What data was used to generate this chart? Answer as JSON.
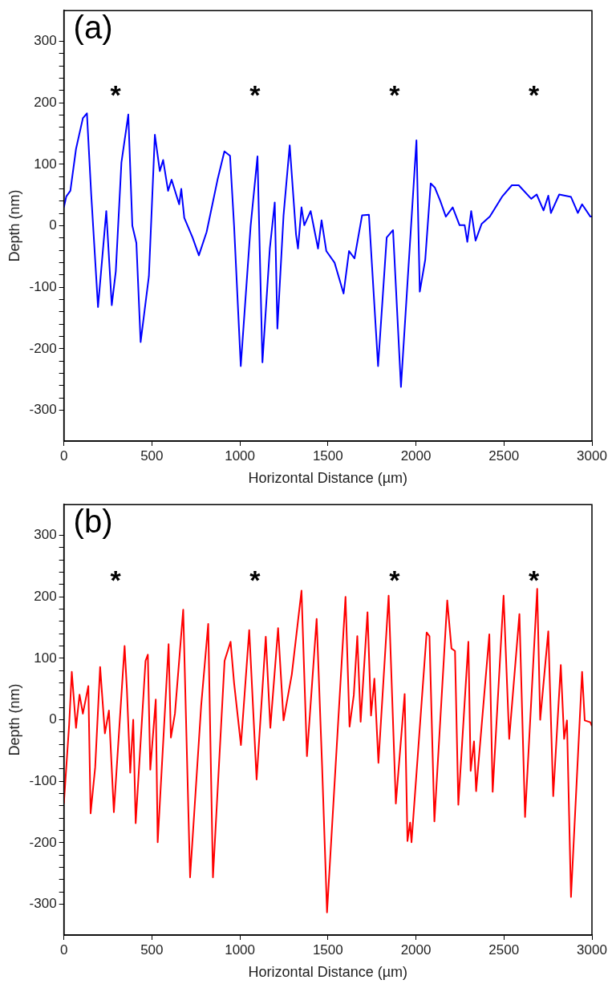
{
  "chart_data": [
    {
      "type": "line",
      "xlabel": "Horizontal Distance (µm)",
      "ylabel": "Depth (nm)",
      "annotations": [
        "(a)",
        "*",
        "*",
        "*",
        "*"
      ],
      "xlim": [
        0,
        3000
      ],
      "xticks": [
        0,
        500,
        1000,
        1500,
        2000,
        2500,
        3000
      ],
      "ylim": [
        -350,
        350
      ],
      "yticks": [
        -300,
        {
          "value": -280,
          "label": null
        },
        {
          "value": -260,
          "label": null
        },
        {
          "value": -240,
          "label": null
        },
        {
          "value": -220,
          "label": null
        },
        -200,
        {
          "value": -180,
          "label": null
        },
        {
          "value": -160,
          "label": null
        },
        {
          "value": -140,
          "label": null
        },
        {
          "value": -120,
          "label": null
        },
        -100,
        {
          "value": -80,
          "label": null
        },
        {
          "value": -60,
          "label": null
        },
        {
          "value": -40,
          "label": null
        },
        {
          "value": -20,
          "label": null
        },
        0,
        {
          "value": 20,
          "label": null
        },
        {
          "value": 40,
          "label": null
        },
        {
          "value": 60,
          "label": null
        },
        {
          "value": 80,
          "label": null
        },
        100,
        {
          "value": 120,
          "label": null
        },
        {
          "value": 140,
          "label": null
        },
        {
          "value": 160,
          "label": null
        },
        {
          "value": 180,
          "label": null
        },
        200,
        {
          "value": 220,
          "label": null
        },
        {
          "value": 240,
          "label": null
        },
        {
          "value": 260,
          "label": null
        },
        {
          "value": 280,
          "label": null
        },
        300
      ],
      "grid": false,
      "legend": false,
      "marker": "none",
      "line_style": "solid",
      "series": [
        {
          "color": "#0000ff",
          "x": [
            0,
            14,
            37,
            69,
            108,
            131,
            155,
            194,
            241,
            272,
            295,
            327,
            366,
            389,
            412,
            436,
            483,
            517,
            545,
            564,
            592,
            612,
            655,
            667,
            684,
            731,
            767,
            811,
            873,
            912,
            944,
            967,
            1005,
            1061,
            1100,
            1128,
            1170,
            1198,
            1213,
            1248,
            1283,
            1319,
            1330,
            1350,
            1366,
            1402,
            1444,
            1464,
            1491,
            1538,
            1589,
            1620,
            1651,
            1694,
            1733,
            1785,
            1834,
            1870,
            1915,
            2003,
            2022,
            2053,
            2084,
            2108,
            2139,
            2170,
            2209,
            2248,
            2277,
            2292,
            2314,
            2339,
            2373,
            2420,
            2491,
            2545,
            2584,
            2655,
            2686,
            2725,
            2752,
            2767,
            2814,
            2881,
            2920,
            2944,
            2991,
            3000
          ],
          "values": [
            30,
            48,
            57,
            125,
            175,
            183,
            53,
            -132,
            24,
            -129,
            -74,
            103,
            181,
            0,
            -28,
            -189,
            -82,
            148,
            89,
            107,
            57,
            75,
            35,
            60,
            13,
            -19,
            -48,
            -10,
            75,
            121,
            114,
            0,
            -228,
            0,
            113,
            -222,
            -37,
            38,
            -167,
            17,
            131,
            -14,
            -37,
            30,
            1,
            24,
            -37,
            9,
            -41,
            -60,
            -110,
            -41,
            -53,
            17,
            18,
            -228,
            -19,
            -7,
            -262,
            139,
            -107,
            -55,
            69,
            62,
            40,
            15,
            30,
            1,
            1,
            -26,
            24,
            -24,
            3,
            15,
            48,
            66,
            66,
            44,
            51,
            25,
            49,
            21,
            51,
            47,
            21,
            35,
            15,
            15
          ]
        }
      ]
    },
    {
      "type": "line",
      "xlabel": "Horizontal Distance (µm)",
      "ylabel": "Depth (nm)",
      "annotations": [
        "(b)",
        "*",
        "*",
        "*",
        "*"
      ],
      "xlim": [
        0,
        3000
      ],
      "xticks": [
        0,
        500,
        1000,
        1500,
        2000,
        2500,
        3000
      ],
      "ylim": [
        -350,
        350
      ],
      "yticks": [
        -300,
        {
          "value": -280,
          "label": null
        },
        {
          "value": -260,
          "label": null
        },
        {
          "value": -240,
          "label": null
        },
        {
          "value": -220,
          "label": null
        },
        -200,
        {
          "value": -180,
          "label": null
        },
        {
          "value": -160,
          "label": null
        },
        {
          "value": -140,
          "label": null
        },
        {
          "value": -120,
          "label": null
        },
        -100,
        {
          "value": -80,
          "label": null
        },
        {
          "value": -60,
          "label": null
        },
        {
          "value": -40,
          "label": null
        },
        {
          "value": -20,
          "label": null
        },
        0,
        {
          "value": 20,
          "label": null
        },
        {
          "value": 40,
          "label": null
        },
        {
          "value": 60,
          "label": null
        },
        {
          "value": 80,
          "label": null
        },
        100,
        {
          "value": 120,
          "label": null
        },
        {
          "value": 140,
          "label": null
        },
        {
          "value": 160,
          "label": null
        },
        {
          "value": 180,
          "label": null
        },
        200,
        {
          "value": 220,
          "label": null
        },
        {
          "value": 240,
          "label": null
        },
        {
          "value": 260,
          "label": null
        },
        {
          "value": 280,
          "label": null
        },
        300
      ],
      "grid": false,
      "legend": false,
      "marker": "none",
      "line_style": "solid",
      "series": [
        {
          "color": "#ff0000",
          "x": [
            0,
            30,
            45,
            69,
            89,
            108,
            139,
            152,
            178,
            206,
            233,
            256,
            284,
            345,
            358,
            377,
            394,
            408,
            464,
            477,
            491,
            522,
            533,
            595,
            608,
            631,
            678,
            717,
            780,
            820,
            847,
            913,
            947,
            967,
            1006,
            1053,
            1095,
            1147,
            1173,
            1217,
            1248,
            1295,
            1350,
            1381,
            1436,
            1467,
            1495,
            1600,
            1623,
            1647,
            1667,
            1686,
            1725,
            1745,
            1764,
            1787,
            1845,
            1886,
            1936,
            1952,
            1967,
            1975,
            2061,
            2077,
            2105,
            2178,
            2202,
            2222,
            2241,
            2298,
            2311,
            2330,
            2342,
            2417,
            2436,
            2498,
            2530,
            2588,
            2620,
            2689,
            2706,
            2752,
            2780,
            2823,
            2842,
            2858,
            2881,
            2944,
            2959,
            2991,
            3000
          ],
          "values": [
            -136,
            -8,
            78,
            -13,
            41,
            10,
            55,
            -152,
            -77,
            86,
            -22,
            15,
            -150,
            120,
            50,
            -86,
            0,
            -168,
            96,
            106,
            -81,
            33,
            -199,
            123,
            -29,
            10,
            179,
            -256,
            23,
            156,
            -256,
            96,
            127,
            60,
            -41,
            146,
            -97,
            135,
            -13,
            149,
            -1,
            74,
            210,
            -59,
            164,
            -75,
            -313,
            200,
            -11,
            40,
            136,
            -3,
            175,
            7,
            67,
            -70,
            202,
            -136,
            42,
            -197,
            -167,
            -199,
            142,
            136,
            -165,
            194,
            116,
            112,
            -138,
            127,
            -83,
            -35,
            -116,
            139,
            -117,
            202,
            -31,
            172,
            -158,
            213,
            0,
            144,
            -124,
            89,
            -31,
            -1,
            -288,
            78,
            -1,
            -4,
            -10
          ]
        }
      ]
    }
  ]
}
